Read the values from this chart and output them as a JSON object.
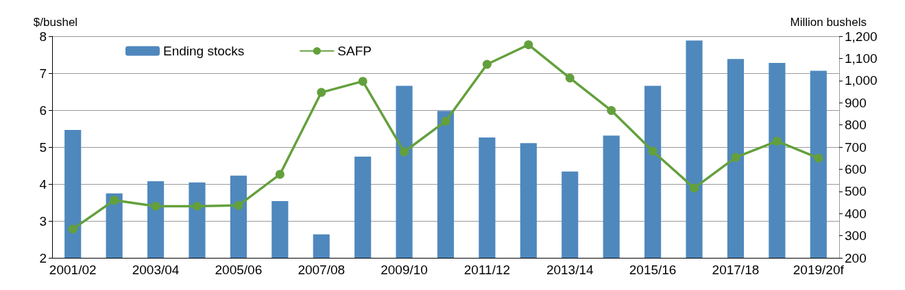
{
  "chart_data": {
    "type": "bar",
    "ylabel": "$/bushel",
    "y2label": "Million bushels",
    "categories": [
      "2001/02",
      null,
      "2003/04",
      null,
      "2005/06",
      null,
      "2007/08",
      null,
      "2009/10",
      null,
      "2011/12",
      null,
      "2013/14",
      null,
      "2015/16",
      null,
      "2017/18",
      null,
      "2019/20f"
    ],
    "series": [
      {
        "name": "Ending stocks",
        "axis": "y2",
        "color": "#4f88bd",
        "values": [
          777,
          491,
          546,
          540,
          571,
          456,
          306,
          657,
          976,
          863,
          743,
          718,
          590,
          752,
          976,
          1181,
          1097,
          1080,
          1044
        ]
      },
      {
        "name": "SAFP",
        "type": "line",
        "axis": "y",
        "color": "#63a03c",
        "values": [
          2.78,
          3.56,
          3.4,
          3.4,
          3.42,
          4.26,
          6.48,
          6.78,
          4.87,
          5.7,
          7.24,
          7.77,
          6.87,
          5.99,
          4.89,
          3.89,
          4.72,
          5.16,
          4.7
        ]
      }
    ],
    "ylim": [
      2,
      8
    ],
    "yticks": [
      2,
      3,
      4,
      5,
      6,
      7,
      8
    ],
    "y2lim": [
      200,
      1200
    ],
    "y2ticks": [
      200,
      300,
      400,
      500,
      600,
      700,
      800,
      900,
      {
        "value": 1000,
        "label": "1,000"
      },
      {
        "value": 1100,
        "label": "1,100"
      },
      {
        "value": 1200,
        "label": "1,200"
      }
    ],
    "grid": "y",
    "legend": "top left",
    "marker": "circle",
    "line_style": "solid"
  }
}
